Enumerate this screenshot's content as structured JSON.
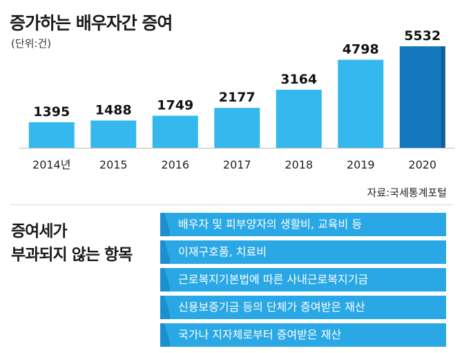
{
  "header": {
    "title": "증가하는 배우자간 증여",
    "unit": "(단위:건)"
  },
  "chart_data": {
    "type": "bar",
    "title": "증가하는 배우자간 증여",
    "unit": "(단위:건)",
    "categories": [
      "2014년",
      "2015",
      "2016",
      "2017",
      "2018",
      "2019",
      "2020"
    ],
    "values": [
      1395,
      1488,
      1749,
      2177,
      3164,
      4798,
      5532
    ],
    "ylim": [
      0,
      5532
    ],
    "grid": false,
    "colors": {
      "bar": "#35b8ee",
      "highlight": "#1478bf",
      "highlight_edge": "#0e5f9c"
    }
  },
  "source": "자료:국세통계포털",
  "exempt": {
    "title_line1": "증여세가",
    "title_line2": "부과되지 않는 항목",
    "items": [
      "배우자 및 피부양자의 생활비, 교육비 등",
      "이재구호품, 치료비",
      "근로복지기본법에 따른 사내근로복지기금",
      "신용보증기금 등의 단체가 증여받은 재산",
      "국가나 지자체로부터 증여받은 재산"
    ]
  }
}
